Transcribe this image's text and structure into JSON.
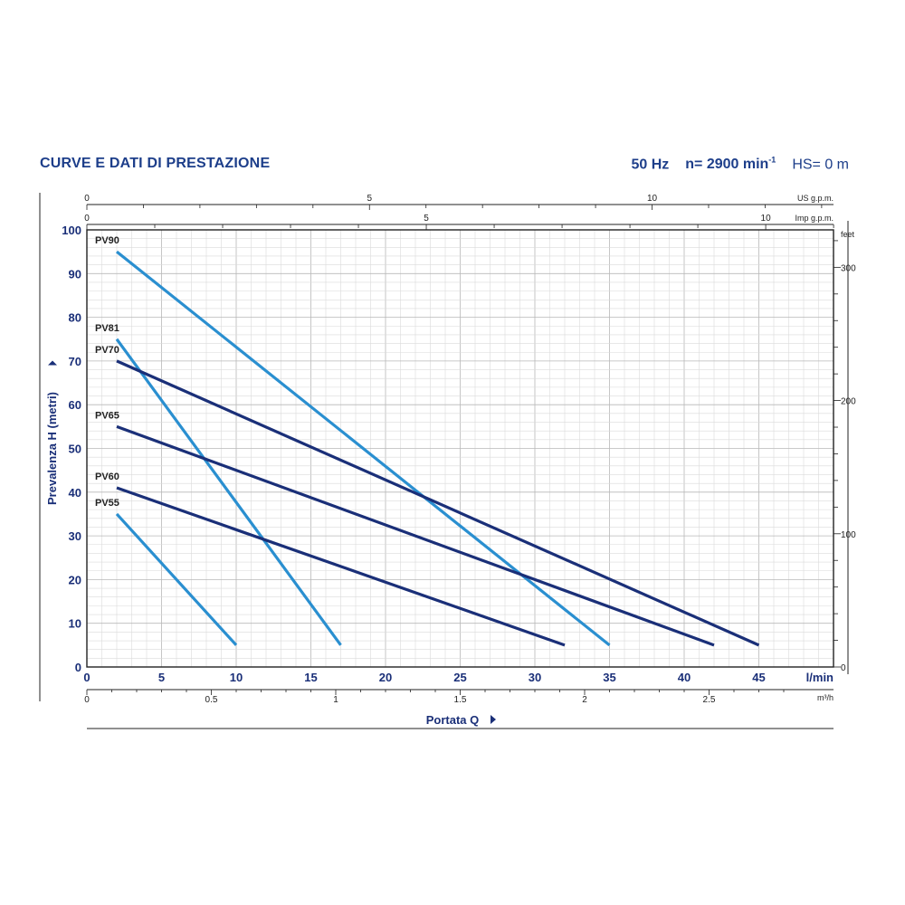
{
  "header": {
    "title": "CURVE E DATI DI PRESTAZIONE",
    "freq": "50 Hz",
    "speed": "n= 2900 min",
    "speed_sup": "-1",
    "hs": "HS= 0 m"
  },
  "chart_data": {
    "type": "line",
    "title": "CURVE E DATI DI PRESTAZIONE",
    "xlabel": "Portata Q",
    "ylabel": "Prevalenza H (metri)",
    "xlim": [
      0,
      50
    ],
    "ylim": [
      0,
      100
    ],
    "x_unit": "l/min",
    "x_ticks": [
      "0",
      "5",
      "10",
      "15",
      "20",
      "25",
      "30",
      "35",
      "40",
      "45"
    ],
    "y_ticks": [
      "0",
      "10",
      "20",
      "30",
      "40",
      "50",
      "60",
      "70",
      "80",
      "90",
      "100"
    ],
    "x2_unit": "m³/h",
    "x2_ticks": [
      "0",
      "0.5",
      "1",
      "1.5",
      "2",
      "2.5"
    ],
    "x2_values": [
      0,
      0.5,
      1,
      1.5,
      2,
      2.5
    ],
    "us_label": "US g.p.m.",
    "us_ticks": [
      "0",
      "5",
      "10"
    ],
    "us_values": [
      0,
      5,
      10
    ],
    "imp_label": "Imp g.p.m.",
    "imp_ticks": [
      "0",
      "5",
      "10"
    ],
    "imp_values": [
      0,
      5,
      10
    ],
    "y2_unit": "feet",
    "y2_ticks": [
      "0",
      "100",
      "200",
      "300"
    ],
    "y2_values": [
      0,
      100,
      200,
      300
    ],
    "grid": true,
    "series": [
      {
        "name": "PV90",
        "color": "#2a8fd0",
        "x": [
          2,
          35
        ],
        "y": [
          95,
          5
        ]
      },
      {
        "name": "PV81",
        "color": "#2a8fd0",
        "x": [
          2,
          17
        ],
        "y": [
          75,
          5
        ]
      },
      {
        "name": "PV70",
        "color": "#1a2f78",
        "x": [
          2,
          45
        ],
        "y": [
          70,
          5
        ]
      },
      {
        "name": "PV65",
        "color": "#1a2f78",
        "x": [
          2,
          42
        ],
        "y": [
          55,
          5
        ]
      },
      {
        "name": "PV60",
        "color": "#1a2f78",
        "x": [
          2,
          32
        ],
        "y": [
          41,
          5
        ]
      },
      {
        "name": "PV55",
        "color": "#2a8fd0",
        "x": [
          2,
          10
        ],
        "y": [
          35,
          5
        ]
      }
    ]
  }
}
